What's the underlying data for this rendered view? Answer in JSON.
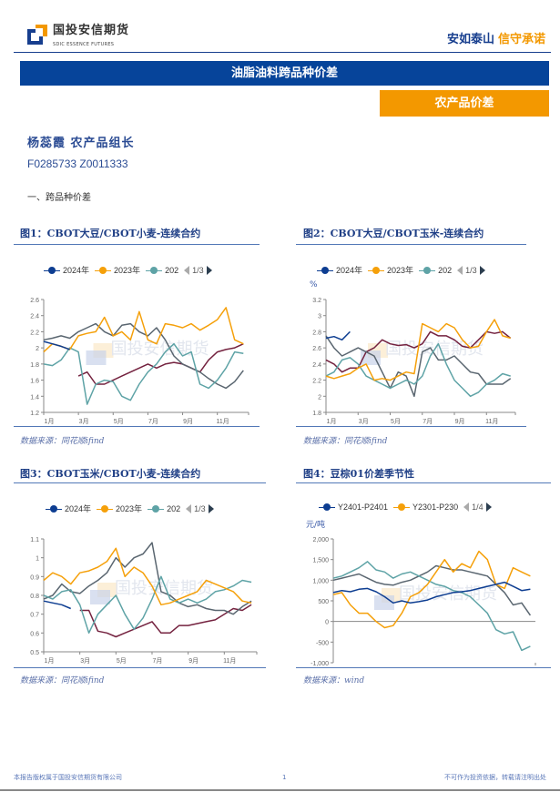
{
  "header": {
    "logo_cn": "国投安信期货",
    "logo_en": "SDIC ESSENCE FUTURES",
    "slogan_blue": "安如泰山",
    "slogan_orange": "信守承诺"
  },
  "report": {
    "title": "油脂油料跨品种价差",
    "category": "农产品价差",
    "author": "杨蕊霞 农产品组长",
    "cert": "F0285733 Z0011333",
    "section": "一、跨品种价差"
  },
  "colors": {
    "brand_blue": "#06449a",
    "brand_orange": "#f39800",
    "s2024": "#0d3d91",
    "s2023": "#f5a00a",
    "teal": "#5ea3a6",
    "gray": "#5a6670",
    "maroon": "#74223f"
  },
  "watermark": "国投安信期货",
  "chart_data": [
    {
      "id": "fig1",
      "type": "line",
      "title": "图1：CBOT大豆/CBOT小麦-连续合约",
      "source": "数据来源：同花顺ifind",
      "legend": [
        "2024年",
        "2023年",
        "202"
      ],
      "pager": "1/3",
      "ylabel": "",
      "ylim": [
        1.2,
        2.6
      ],
      "yticks": [
        "1.2",
        "1.4",
        "1.6",
        "1.8",
        "2",
        "2.2",
        "2.4",
        "2.6"
      ],
      "xticks": [
        "1月",
        "3月",
        "5月",
        "7月",
        "9月",
        "11月"
      ],
      "x": [
        1,
        1.5,
        2,
        2.5,
        3,
        3.5,
        4,
        4.5,
        5,
        5.5,
        6,
        6.5,
        7,
        7.5,
        8,
        8.5,
        9,
        9.5,
        10,
        10.5,
        11,
        11.5,
        12,
        12.5
      ],
      "series": [
        {
          "name": "2024年",
          "color": "#0d3d91",
          "values": [
            2.08,
            2.05,
            2.02,
            1.98,
            null,
            null,
            null,
            null,
            null,
            null,
            null,
            null,
            null,
            null,
            null,
            null,
            null,
            null,
            null,
            null,
            null,
            null,
            null,
            null
          ]
        },
        {
          "name": "2023年",
          "color": "#f5a00a",
          "values": [
            1.95,
            2.05,
            2.02,
            1.98,
            2.15,
            2.18,
            2.2,
            2.38,
            2.15,
            2.2,
            2.1,
            2.45,
            2.1,
            2.05,
            2.3,
            2.28,
            2.25,
            2.3,
            2.22,
            2.28,
            2.35,
            2.5,
            2.1,
            2.05
          ]
        },
        {
          "color": "#5ea3a6",
          "values": [
            1.8,
            1.78,
            1.85,
            2.0,
            1.95,
            1.3,
            1.55,
            1.6,
            1.58,
            1.4,
            1.35,
            1.55,
            1.7,
            1.8,
            1.95,
            2.05,
            1.9,
            1.95,
            1.55,
            1.5,
            1.6,
            1.75,
            1.95,
            1.93
          ]
        },
        {
          "color": "#5a6670",
          "values": [
            2.1,
            2.12,
            2.15,
            2.12,
            2.2,
            2.25,
            2.3,
            2.2,
            2.15,
            2.28,
            2.3,
            2.2,
            2.15,
            2.25,
            2.1,
            1.9,
            1.8,
            1.75,
            1.7,
            1.62,
            1.55,
            1.5,
            1.58,
            1.72
          ]
        },
        {
          "color": "#74223f",
          "values": [
            null,
            null,
            null,
            null,
            1.65,
            1.7,
            1.55,
            1.55,
            1.6,
            1.65,
            1.7,
            1.75,
            1.8,
            1.75,
            1.8,
            1.82,
            1.8,
            1.75,
            1.7,
            1.85,
            1.95,
            1.98,
            2.0,
            2.05
          ]
        }
      ]
    },
    {
      "id": "fig2",
      "type": "line",
      "title": "图2：CBOT大豆/CBOT玉米-连续合约",
      "source": "数据来源：同花顺ifind",
      "legend": [
        "2024年",
        "2023年",
        "202"
      ],
      "pager": "1/3",
      "ylabel": "%",
      "ylim": [
        1.8,
        3.2
      ],
      "yticks": [
        "1.8",
        "2",
        "2.2",
        "2.4",
        "2.6",
        "2.8",
        "3",
        "3.2"
      ],
      "xticks": [
        "1月",
        "3月",
        "5月",
        "7月",
        "9月",
        "11月"
      ],
      "x": [
        1,
        1.5,
        2,
        2.5,
        3,
        3.5,
        4,
        4.5,
        5,
        5.5,
        6,
        6.5,
        7,
        7.5,
        8,
        8.5,
        9,
        9.5,
        10,
        10.5,
        11,
        11.5,
        12,
        12.5
      ],
      "series": [
        {
          "name": "2024年",
          "color": "#0d3d91",
          "values": [
            2.72,
            2.74,
            2.7,
            2.8,
            null,
            null,
            null,
            null,
            null,
            null,
            null,
            null,
            null,
            null,
            null,
            null,
            null,
            null,
            null,
            null,
            null,
            null,
            null,
            null
          ]
        },
        {
          "name": "2023年",
          "color": "#f5a00a",
          "values": [
            2.25,
            2.22,
            2.25,
            2.28,
            2.35,
            2.4,
            2.2,
            2.22,
            2.2,
            2.25,
            2.3,
            2.28,
            2.9,
            2.85,
            2.8,
            2.9,
            2.85,
            2.7,
            2.6,
            2.62,
            2.8,
            2.95,
            2.75,
            2.72
          ]
        },
        {
          "color": "#5ea3a6",
          "values": [
            2.25,
            2.3,
            2.45,
            2.48,
            2.4,
            2.25,
            2.2,
            2.15,
            2.1,
            2.15,
            2.2,
            2.15,
            2.25,
            2.5,
            2.65,
            2.4,
            2.2,
            2.1,
            2.0,
            2.05,
            2.15,
            2.2,
            2.28,
            2.25
          ]
        },
        {
          "color": "#5a6670",
          "values": [
            2.75,
            2.6,
            2.5,
            2.55,
            2.6,
            2.55,
            2.5,
            2.3,
            2.1,
            2.3,
            2.25,
            2.0,
            2.55,
            2.6,
            2.45,
            2.45,
            2.5,
            2.4,
            2.3,
            2.28,
            2.15,
            2.15,
            2.15,
            2.22
          ]
        },
        {
          "color": "#74223f",
          "values": [
            2.45,
            2.4,
            2.3,
            2.35,
            2.35,
            2.55,
            2.6,
            2.7,
            2.65,
            2.63,
            2.64,
            2.6,
            2.65,
            2.8,
            2.75,
            2.75,
            2.7,
            2.62,
            2.6,
            2.7,
            2.8,
            2.78,
            2.8,
            2.72
          ]
        }
      ]
    },
    {
      "id": "fig3",
      "type": "line",
      "title": "图3：CBOT玉米/CBOT小麦-连续合约",
      "source": "数据来源：同花顺ifind",
      "legend": [
        "2024年",
        "2023年",
        "202"
      ],
      "pager": "1/3",
      "ylabel": "",
      "ylim": [
        0.5,
        1.1
      ],
      "yticks": [
        "0.5",
        "0.6",
        "0.7",
        "0.8",
        "0.9",
        "1",
        "1.1"
      ],
      "xticks": [
        "1月",
        "3月",
        "5月",
        "7月",
        "9月",
        "11月"
      ],
      "x": [
        1,
        1.5,
        2,
        2.5,
        3,
        3.5,
        4,
        4.5,
        5,
        5.5,
        6,
        6.5,
        7,
        7.5,
        8,
        8.5,
        9,
        9.5,
        10,
        10.5,
        11,
        11.5,
        12,
        12.5
      ],
      "series": [
        {
          "name": "2024年",
          "color": "#0d3d91",
          "values": [
            0.77,
            0.76,
            0.75,
            0.73,
            null,
            null,
            null,
            null,
            null,
            null,
            null,
            null,
            null,
            null,
            null,
            null,
            null,
            null,
            null,
            null,
            null,
            null,
            null,
            null
          ]
        },
        {
          "name": "2023年",
          "color": "#f5a00a",
          "values": [
            0.88,
            0.92,
            0.9,
            0.86,
            0.92,
            0.93,
            0.95,
            0.98,
            1.05,
            0.9,
            0.95,
            0.92,
            0.85,
            0.75,
            0.76,
            0.78,
            0.8,
            0.82,
            0.88,
            0.86,
            0.84,
            0.82,
            0.77,
            0.76
          ]
        },
        {
          "color": "#5ea3a6",
          "values": [
            0.8,
            0.78,
            0.82,
            0.83,
            0.75,
            0.6,
            0.7,
            0.75,
            0.8,
            0.7,
            0.62,
            0.68,
            0.78,
            0.9,
            0.78,
            0.76,
            0.78,
            0.76,
            0.78,
            0.82,
            0.83,
            0.85,
            0.88,
            0.87
          ]
        },
        {
          "color": "#5a6670",
          "values": [
            0.78,
            0.8,
            0.86,
            0.82,
            0.81,
            0.85,
            0.88,
            0.92,
            1.0,
            0.95,
            1.0,
            1.02,
            1.08,
            0.82,
            0.8,
            0.76,
            0.74,
            0.75,
            0.73,
            0.72,
            0.72,
            0.7,
            0.74,
            0.77
          ]
        },
        {
          "color": "#74223f",
          "values": [
            null,
            null,
            null,
            null,
            0.72,
            0.72,
            0.61,
            0.6,
            0.58,
            0.6,
            0.62,
            0.64,
            0.66,
            0.6,
            0.6,
            0.64,
            0.64,
            0.65,
            0.66,
            0.67,
            0.7,
            0.73,
            0.72,
            0.75
          ]
        }
      ]
    },
    {
      "id": "fig4",
      "type": "line",
      "title": "图4：豆棕01价差季节性",
      "source": "数据来源：wind",
      "legend": [
        "Y2401-P2401",
        "Y2301-P230"
      ],
      "pager": "1/4",
      "ylabel": "元/吨",
      "ylim": [
        -1000,
        2000
      ],
      "yticks": [
        "-1,000",
        "-500",
        "0",
        "500",
        "1,000",
        "1,500",
        "2,000"
      ],
      "xticks": [],
      "x": [
        1,
        1.5,
        2,
        2.5,
        3,
        3.5,
        4,
        4.5,
        5,
        5.5,
        6,
        6.5,
        7,
        7.5,
        8,
        8.5,
        9,
        9.5,
        10,
        10.5,
        11,
        11.5,
        12,
        12.5
      ],
      "series": [
        {
          "name": "Y2401-P2401",
          "color": "#0d3d91",
          "values": [
            700,
            750,
            720,
            780,
            800,
            720,
            600,
            450,
            500,
            450,
            480,
            520,
            600,
            650,
            700,
            720,
            750,
            800,
            850,
            900,
            950,
            850,
            750,
            780
          ]
        },
        {
          "name": "Y2301-P230",
          "color": "#f5a00a",
          "values": [
            650,
            700,
            400,
            200,
            200,
            0,
            -150,
            -100,
            200,
            600,
            700,
            900,
            1200,
            1500,
            1200,
            1400,
            1300,
            1700,
            1500,
            900,
            800,
            1300,
            1200,
            1100
          ]
        },
        {
          "color": "#5ea3a6",
          "values": [
            1050,
            1100,
            1200,
            1300,
            1450,
            1250,
            1200,
            1050,
            1150,
            1200,
            1100,
            1000,
            900,
            850,
            750,
            700,
            600,
            400,
            200,
            -200,
            -300,
            -250,
            -700,
            -600
          ]
        },
        {
          "color": "#5a6670",
          "values": [
            1000,
            1050,
            1100,
            1150,
            1050,
            950,
            900,
            880,
            950,
            1000,
            1100,
            1200,
            1350,
            1300,
            1250,
            1250,
            1200,
            1150,
            1100,
            900,
            700,
            400,
            450,
            150
          ]
        }
      ]
    }
  ],
  "footer": {
    "left": "本报告版权属于国投安信期货有限公司",
    "page": "1",
    "right": "不可作为投资依据，转载请注明出处"
  }
}
